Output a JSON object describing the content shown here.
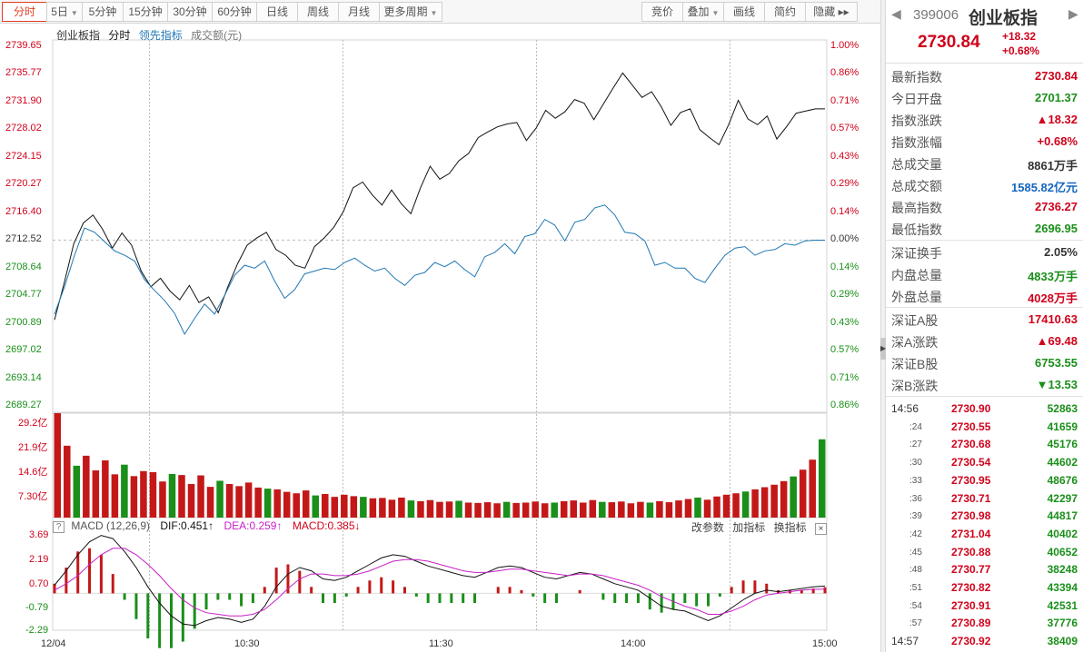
{
  "toolbar": {
    "left": [
      {
        "label": "分时",
        "active": true
      },
      {
        "label": "5日",
        "caret": true
      },
      {
        "label": "5分钟"
      },
      {
        "label": "15分钟"
      },
      {
        "label": "30分钟"
      },
      {
        "label": "60分钟"
      },
      {
        "label": "日线"
      },
      {
        "label": "周线"
      },
      {
        "label": "月线"
      },
      {
        "label": "更多周期",
        "caret": true
      }
    ],
    "right": [
      {
        "label": "竞价"
      },
      {
        "label": "叠加",
        "caret": true
      },
      {
        "label": "画线"
      },
      {
        "label": "简约"
      },
      {
        "label": "隐藏 ▸▸"
      }
    ]
  },
  "legend": {
    "index_name": "创业板指",
    "mode": "分时",
    "leading": "领先指标",
    "volume": "成交额(元)"
  },
  "price_axis": {
    "left": [
      "2739.65",
      "2735.77",
      "2731.90",
      "2728.02",
      "2724.15",
      "2720.27",
      "2716.40",
      "2712.52",
      "2708.64",
      "2704.77",
      "2700.89",
      "2697.02",
      "2693.14",
      "2689.27"
    ],
    "right": [
      "1.00%",
      "0.86%",
      "0.71%",
      "0.57%",
      "0.43%",
      "0.29%",
      "0.14%",
      "0.00%",
      "0.14%",
      "0.29%",
      "0.43%",
      "0.57%",
      "0.71%",
      "0.86%"
    ]
  },
  "volume_axis": [
    "29.2亿",
    "21.9亿",
    "14.6亿",
    "7.30亿"
  ],
  "macd": {
    "title": "MACD (12,26,9)",
    "dif": "DIF:0.451↑",
    "dea": "DEA:0.259↑",
    "macd": "MACD:0.385↓",
    "actions": [
      "改参数",
      "加指标",
      "换指标"
    ],
    "close": "×",
    "help": "?",
    "axis": [
      "3.69",
      "2.19",
      "0.70",
      "-0.79",
      "-2.29"
    ]
  },
  "time_axis": [
    "12/04",
    "10:30",
    "11:30",
    "14:00",
    "15:00"
  ],
  "chart_data": {
    "type": "line",
    "x_range": [
      "09:30",
      "15:00"
    ],
    "ylim": [
      2689.27,
      2739.65
    ],
    "prev_close": 2712.52,
    "series": [
      {
        "name": "创业板指",
        "color": "#111111",
        "values": [
          2701.4,
          2706.5,
          2712.0,
          2714.9,
          2716.0,
          2714.0,
          2711.4,
          2713.5,
          2711.8,
          2708.2,
          2706.0,
          2707.2,
          2705.4,
          2704.2,
          2706.2,
          2703.8,
          2704.6,
          2702.4,
          2706.0,
          2709.2,
          2711.8,
          2712.8,
          2713.6,
          2711.2,
          2710.4,
          2709.0,
          2708.6,
          2711.6,
          2712.8,
          2714.3,
          2716.5,
          2719.8,
          2720.6,
          2718.8,
          2717.4,
          2719.5,
          2717.6,
          2716.2,
          2719.8,
          2722.8,
          2721.0,
          2721.8,
          2723.6,
          2724.6,
          2726.8,
          2727.6,
          2728.3,
          2728.7,
          2728.9,
          2726.4,
          2728.1,
          2730.6,
          2729.5,
          2730.4,
          2732.1,
          2731.6,
          2729.3,
          2731.5,
          2733.7,
          2735.8,
          2734.1,
          2732.4,
          2733.2,
          2731.1,
          2728.5,
          2730.3,
          2730.8,
          2727.9,
          2726.8,
          2725.8,
          2728.6,
          2732.0,
          2729.4,
          2728.6,
          2729.8,
          2726.6,
          2728.3,
          2730.2,
          2730.5,
          2730.8,
          2730.8
        ]
      },
      {
        "name": "领先指标",
        "color": "#1f77b4",
        "values": [
          2702.2,
          2706.0,
          2710.4,
          2714.2,
          2713.6,
          2712.3,
          2711.0,
          2710.4,
          2709.6,
          2707.0,
          2705.5,
          2704.1,
          2702.3,
          2699.4,
          2701.6,
          2703.6,
          2702.2,
          2704.8,
          2707.6,
          2709.0,
          2708.6,
          2709.6,
          2706.8,
          2704.4,
          2705.6,
          2707.8,
          2708.2,
          2708.6,
          2708.4,
          2709.4,
          2710.0,
          2709.0,
          2708.2,
          2708.6,
          2707.2,
          2706.2,
          2707.6,
          2708.0,
          2709.4,
          2708.8,
          2709.6,
          2708.4,
          2707.4,
          2710.2,
          2710.8,
          2712.0,
          2710.6,
          2713.0,
          2713.4,
          2715.4,
          2714.6,
          2712.4,
          2715.0,
          2715.4,
          2717.0,
          2717.4,
          2716.0,
          2713.6,
          2713.4,
          2712.4,
          2709.0,
          2709.4,
          2708.6,
          2708.6,
          2707.2,
          2706.6,
          2708.6,
          2710.4,
          2711.4,
          2711.6,
          2710.4,
          2711.0,
          2711.2,
          2712.0,
          2711.8,
          2712.4,
          2712.5,
          2712.5
        ]
      }
    ],
    "volume": {
      "ylim": [
        0,
        29.2
      ],
      "unit": "亿",
      "values": [
        29.2,
        20.1,
        14.5,
        17.3,
        13.2,
        16.0,
        12.1,
        14.8,
        11.6,
        13.0,
        12.7,
        10.1,
        12.2,
        11.9,
        9.4,
        11.8,
        8.6,
        10.3,
        9.4,
        8.8,
        9.8,
        8.4,
        8.1,
        7.9,
        7.2,
        6.8,
        7.6,
        6.2,
        6.6,
        5.8,
        6.4,
        6.0,
        5.8,
        5.4,
        5.5,
        5.0,
        5.6,
        4.8,
        4.6,
        4.9,
        4.4,
        4.5,
        4.7,
        4.2,
        4.1,
        4.3,
        4.0,
        4.4,
        4.1,
        4.2,
        4.5,
        4.0,
        4.2,
        4.6,
        4.8,
        4.2,
        4.9,
        4.4,
        4.3,
        4.5,
        4.0,
        4.4,
        4.2,
        4.6,
        4.3,
        4.8,
        5.2,
        5.6,
        5.0,
        5.9,
        6.4,
        6.8,
        7.3,
        7.9,
        8.5,
        9.2,
        10.2,
        11.5,
        13.4,
        16.2,
        21.9
      ]
    },
    "macd": {
      "ylim": [
        -2.29,
        3.69
      ],
      "dif": [
        0.5,
        1.4,
        2.4,
        3.2,
        3.6,
        3.4,
        2.6,
        1.6,
        0.4,
        -0.6,
        -1.4,
        -1.9,
        -2.0,
        -1.7,
        -1.5,
        -1.6,
        -1.8,
        -1.6,
        -0.8,
        0.4,
        1.2,
        1.6,
        1.4,
        0.9,
        0.8,
        1.0,
        1.4,
        1.8,
        2.2,
        2.4,
        2.3,
        2.0,
        1.7,
        1.5,
        1.3,
        1.1,
        1.0,
        1.3,
        1.6,
        1.7,
        1.6,
        1.3,
        1.0,
        0.9,
        1.1,
        1.3,
        1.2,
        0.9,
        0.6,
        0.4,
        0.2,
        -0.3,
        -0.8,
        -1.0,
        -1.1,
        -1.4,
        -1.7,
        -1.4,
        -0.9,
        -0.4,
        0.0,
        0.2,
        0.1,
        0.2,
        0.3,
        0.4,
        0.45
      ],
      "dea": [
        0.2,
        0.6,
        1.1,
        1.8,
        2.4,
        2.8,
        2.8,
        2.4,
        1.8,
        1.1,
        0.3,
        -0.4,
        -0.9,
        -1.2,
        -1.3,
        -1.4,
        -1.4,
        -1.3,
        -1.0,
        -0.4,
        0.3,
        0.9,
        1.2,
        1.2,
        1.1,
        1.1,
        1.2,
        1.4,
        1.7,
        2.0,
        2.1,
        2.1,
        2.0,
        1.8,
        1.6,
        1.4,
        1.3,
        1.3,
        1.4,
        1.5,
        1.5,
        1.4,
        1.3,
        1.2,
        1.1,
        1.2,
        1.2,
        1.1,
        0.9,
        0.7,
        0.5,
        0.2,
        -0.2,
        -0.5,
        -0.8,
        -1.0,
        -1.3,
        -1.3,
        -1.1,
        -0.8,
        -0.4,
        -0.1,
        0.0,
        0.1,
        0.2,
        0.25,
        0.26
      ]
    }
  },
  "panel": {
    "code": "399006",
    "name": "创业板指",
    "price": "2730.84",
    "change": "+18.32",
    "change_pct": "+0.68%",
    "stats1": [
      {
        "label": "最新指数",
        "value": "2730.84",
        "color": "red"
      },
      {
        "label": "今日开盘",
        "value": "2701.37",
        "color": "green"
      },
      {
        "label": "指数涨跌",
        "value": "▲18.32",
        "color": "red"
      },
      {
        "label": "指数涨幅",
        "value": "+0.68%",
        "color": "red"
      },
      {
        "label": "总成交量",
        "value": "8861万手",
        "color": "dark"
      },
      {
        "label": "总成交额",
        "value": "1585.82亿元",
        "color": "blue"
      },
      {
        "label": "最高指数",
        "value": "2736.27",
        "color": "red"
      },
      {
        "label": "最低指数",
        "value": "2696.95",
        "color": "green"
      }
    ],
    "stats2": [
      {
        "label": "深证换手",
        "value": "2.05%",
        "color": "dark"
      },
      {
        "label": "内盘总量",
        "value": "4833万手",
        "color": "green"
      },
      {
        "label": "外盘总量",
        "value": "4028万手",
        "color": "red"
      }
    ],
    "stats3": [
      {
        "label": "深证A股",
        "value": "17410.63",
        "color": "red"
      },
      {
        "label": "深A涨跌",
        "value": "▲69.48",
        "color": "red"
      },
      {
        "label": "深证B股",
        "value": "6753.55",
        "color": "green"
      },
      {
        "label": "深B涨跌",
        "value": "▼13.53",
        "color": "green"
      }
    ],
    "ticks": [
      {
        "time": "14:56",
        "price": "2730.90",
        "vol": "52863",
        "small": false
      },
      {
        "time": ":24",
        "price": "2730.55",
        "vol": "41659",
        "small": true
      },
      {
        "time": ":27",
        "price": "2730.68",
        "vol": "45176",
        "small": true
      },
      {
        "time": ":30",
        "price": "2730.54",
        "vol": "44602",
        "small": true
      },
      {
        "time": ":33",
        "price": "2730.95",
        "vol": "48676",
        "small": true
      },
      {
        "time": ":36",
        "price": "2730.71",
        "vol": "42297",
        "small": true
      },
      {
        "time": ":39",
        "price": "2730.98",
        "vol": "44817",
        "small": true
      },
      {
        "time": ":42",
        "price": "2731.04",
        "vol": "40402",
        "small": true
      },
      {
        "time": ":45",
        "price": "2730.88",
        "vol": "40652",
        "small": true
      },
      {
        "time": ":48",
        "price": "2730.77",
        "vol": "38248",
        "small": true
      },
      {
        "time": ":51",
        "price": "2730.82",
        "vol": "43394",
        "small": true
      },
      {
        "time": ":54",
        "price": "2730.91",
        "vol": "42531",
        "small": true
      },
      {
        "time": ":57",
        "price": "2730.89",
        "vol": "37776",
        "small": true
      },
      {
        "time": "14:57",
        "price": "2730.92",
        "vol": "38409",
        "small": false
      }
    ]
  }
}
